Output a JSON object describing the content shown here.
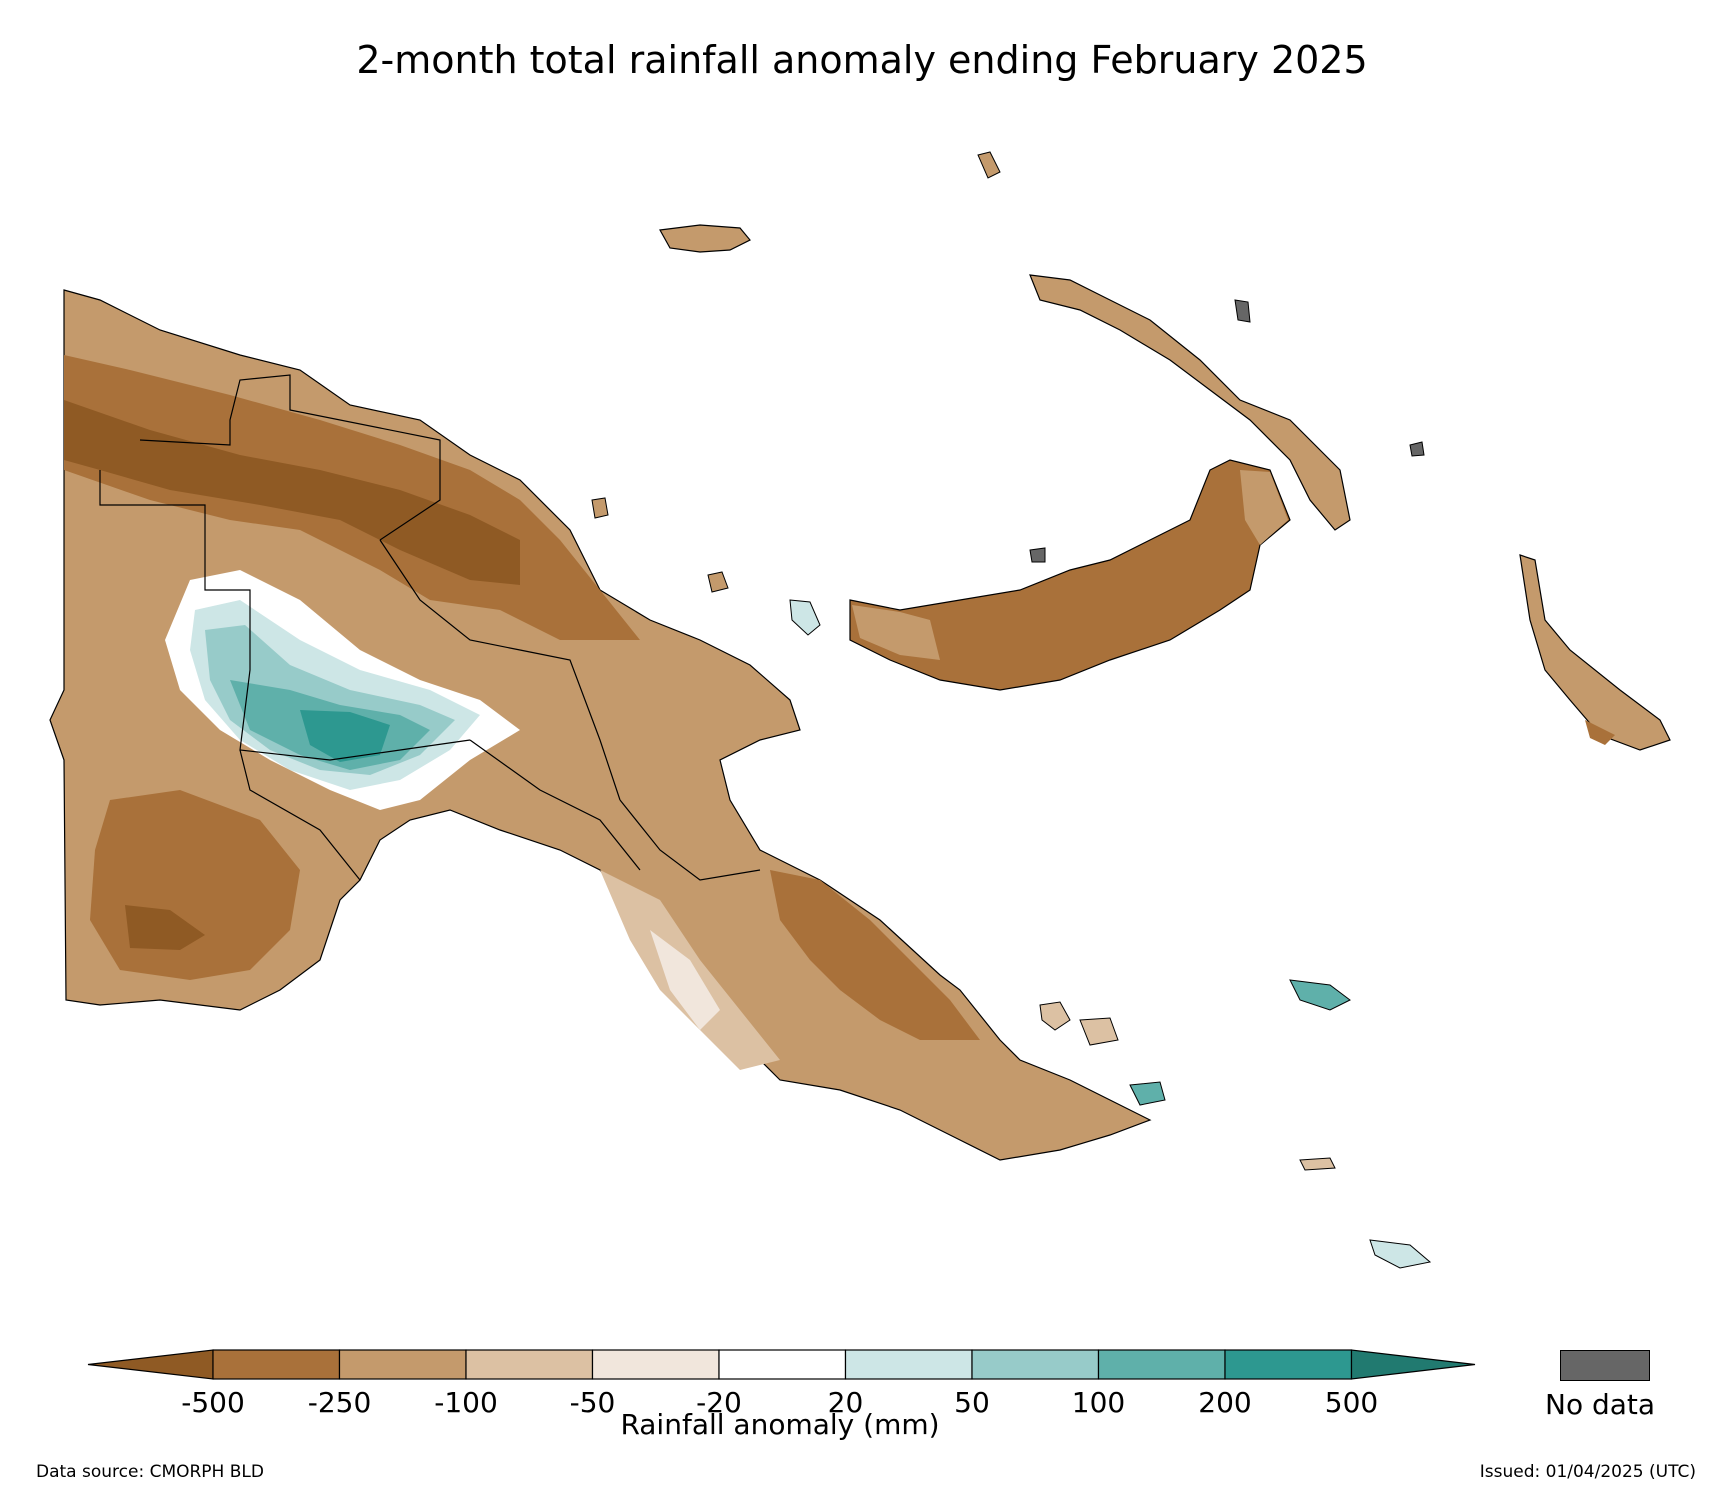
{
  "title": "2-month total rainfall anomaly ending February 2025",
  "colorbar": {
    "label": "Rainfall anomaly (mm)",
    "ticks": [
      "-500",
      "-250",
      "-100",
      "-50",
      "-20",
      "20",
      "50",
      "100",
      "200",
      "500"
    ],
    "under_color": "#8f5a24",
    "over_color": "#217a70",
    "bins": [
      {
        "from": "-500",
        "to": "-250",
        "color": "#a9713a"
      },
      {
        "from": "-250",
        "to": "-100",
        "color": "#c49a6c"
      },
      {
        "from": "-100",
        "to": "-50",
        "color": "#dcc1a3"
      },
      {
        "from": "-50",
        "to": "-20",
        "color": "#f1e6dc"
      },
      {
        "from": "-20",
        "to": "20",
        "color": "#ffffff"
      },
      {
        "from": "20",
        "to": "50",
        "color": "#cde6e6"
      },
      {
        "from": "50",
        "to": "100",
        "color": "#97cbc9"
      },
      {
        "from": "100",
        "to": "200",
        "color": "#5fb0aa"
      },
      {
        "from": "200",
        "to": "500",
        "color": "#2d9890"
      }
    ]
  },
  "no_data": {
    "label": "No data",
    "color": "#666666"
  },
  "footer": {
    "data_source": "Data source: CMORPH BLD",
    "issued": "Issued: 01/04/2025 (UTC)"
  }
}
